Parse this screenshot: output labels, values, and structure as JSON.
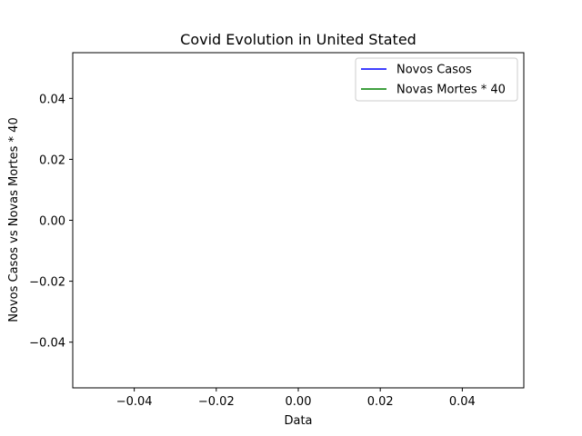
{
  "chart_data": {
    "type": "line",
    "title": "Covid Evolution in United Stated",
    "xlabel": "Data",
    "ylabel": "Novos Casos vs Novas Mortes * 40",
    "xlim": [
      -0.055,
      0.055
    ],
    "ylim": [
      -0.055,
      0.055
    ],
    "xticks": [
      -0.04,
      -0.02,
      0.0,
      0.02,
      0.04
    ],
    "xtick_labels": [
      "−0.04",
      "−0.02",
      "0.00",
      "0.02",
      "0.04"
    ],
    "yticks": [
      -0.04,
      -0.02,
      0.0,
      0.02,
      0.04
    ],
    "ytick_labels": [
      "−0.04",
      "−0.02",
      "0.00",
      "0.02",
      "0.04"
    ],
    "grid": false,
    "legend_position": "top-right",
    "series": [
      {
        "name": "Novos Casos",
        "color": "#0000ff",
        "x": [],
        "y": []
      },
      {
        "name": "Novas Mortes * 40",
        "color": "#008000",
        "x": [],
        "y": []
      }
    ]
  }
}
